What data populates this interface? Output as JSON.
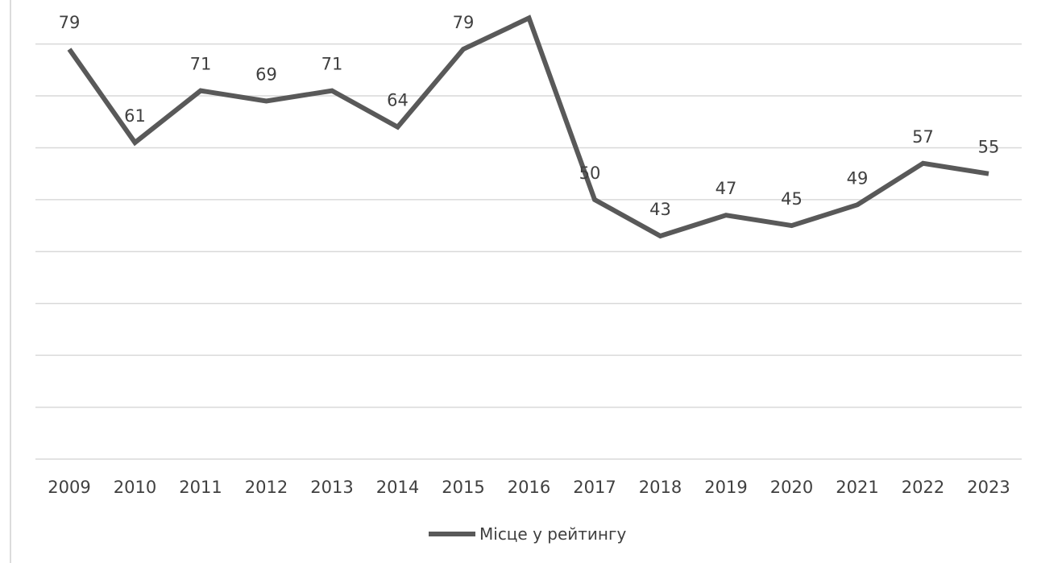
{
  "chart_data": {
    "type": "line",
    "title": "",
    "xlabel": "",
    "ylabel": "",
    "categories": [
      "2009",
      "2010",
      "2011",
      "2012",
      "2013",
      "2014",
      "2015",
      "2016",
      "2017",
      "2018",
      "2019",
      "2020",
      "2021",
      "2022",
      "2023"
    ],
    "series": [
      {
        "name": "Місце у рейтингу",
        "values": [
          79,
          61,
          71,
          69,
          71,
          64,
          79,
          85,
          50,
          43,
          47,
          45,
          49,
          57,
          55
        ],
        "labels": [
          "79",
          "61",
          "71",
          "69",
          "71",
          "64",
          "79",
          "",
          "50",
          "43",
          "47",
          "45",
          "49",
          "57",
          "55"
        ],
        "color": "#595959"
      }
    ],
    "ylim": [
      0,
      90
    ],
    "grid": true,
    "y_tick_labels_shown": false,
    "legend": {
      "position": "bottom",
      "entries": [
        "Місце у рейтингу"
      ]
    }
  }
}
